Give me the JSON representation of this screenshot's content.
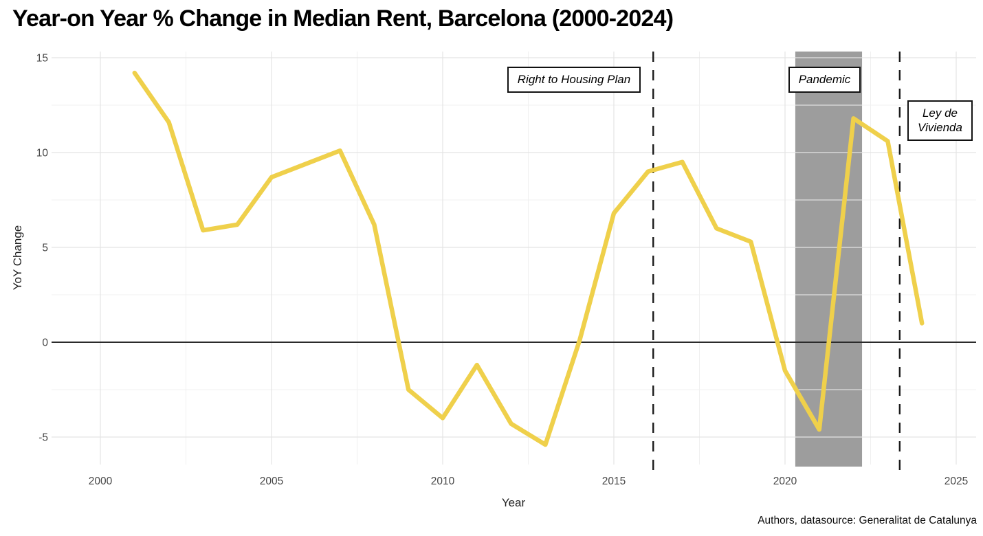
{
  "title": "Year-on Year % Change in Median Rent, Barcelona (2000-2024)",
  "annotations": {
    "plan": "Right to Housing Plan",
    "pandemic": "Pandemic",
    "ley_line1": "Ley de",
    "ley_line2": "Vivienda"
  },
  "chart_data": {
    "type": "line",
    "title": "Year-on Year % Change in Median Rent, Barcelona (2000-2024)",
    "xlabel": "Year",
    "ylabel": "YoY Change",
    "caption": "Authors, datasource: Generalitat de Catalunya",
    "x": [
      2001,
      2002,
      2003,
      2004,
      2005,
      2006,
      2007,
      2008,
      2009,
      2010,
      2011,
      2012,
      2013,
      2014,
      2015,
      2016,
      2017,
      2018,
      2019,
      2020,
      2021,
      2022,
      2023,
      2024
    ],
    "values": [
      14.2,
      11.6,
      5.9,
      6.2,
      8.7,
      9.4,
      10.1,
      6.2,
      -2.5,
      -4.0,
      -1.2,
      -4.3,
      -5.4,
      0.1,
      6.8,
      9.0,
      9.5,
      6.0,
      5.3,
      -1.5,
      -4.6,
      11.8,
      10.6,
      1.0
    ],
    "x_ticks": [
      2000,
      2005,
      2010,
      2015,
      2020,
      2025
    ],
    "y_ticks": [
      15,
      10,
      5,
      0,
      -5
    ],
    "xlim": [
      1998.6,
      2025.7
    ],
    "ylim": [
      -6.4,
      15.3
    ],
    "grid": "major and minor, light gray, zero line solid black",
    "legend": "none",
    "line_color": "#EFD04B",
    "band_color": "#9D9D9D",
    "events": [
      {
        "type": "vline_dashed",
        "year": 2016.15,
        "label": "Right to Housing Plan"
      },
      {
        "type": "shaded_band",
        "year_from": 2020.3,
        "year_to": 2022.25,
        "label": "Pandemic"
      },
      {
        "type": "vline_dashed",
        "year": 2023.35,
        "label": "Ley de Vivienda"
      }
    ]
  }
}
